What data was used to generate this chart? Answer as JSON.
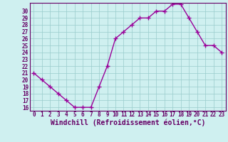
{
  "x": [
    0,
    1,
    2,
    3,
    4,
    5,
    6,
    7,
    8,
    9,
    10,
    11,
    12,
    13,
    14,
    15,
    16,
    17,
    18,
    19,
    20,
    21,
    22,
    23
  ],
  "y": [
    21,
    20,
    19,
    18,
    17,
    16,
    16,
    16,
    19,
    22,
    26,
    27,
    28,
    29,
    29,
    30,
    30,
    31,
    31,
    29,
    27,
    25,
    25,
    24
  ],
  "line_color": "#990099",
  "marker": "+",
  "marker_color": "#990099",
  "bg_color": "#cff0f0",
  "grid_color": "#99cccc",
  "axis_color": "#660066",
  "xlabel": "Windchill (Refroidissement éolien,°C)",
  "xlabel_color": "#660066",
  "ylabel_ticks": [
    16,
    17,
    18,
    19,
    20,
    21,
    22,
    23,
    24,
    25,
    26,
    27,
    28,
    29,
    30
  ],
  "ylim": [
    15.5,
    31.2
  ],
  "xlim": [
    -0.5,
    23.5
  ],
  "xticks": [
    0,
    1,
    2,
    3,
    4,
    5,
    6,
    7,
    8,
    9,
    10,
    11,
    12,
    13,
    14,
    15,
    16,
    17,
    18,
    19,
    20,
    21,
    22,
    23
  ],
  "tick_color": "#660066",
  "tick_fontsize": 5.5,
  "xlabel_fontsize": 7,
  "line_width": 1.0,
  "marker_size": 4
}
